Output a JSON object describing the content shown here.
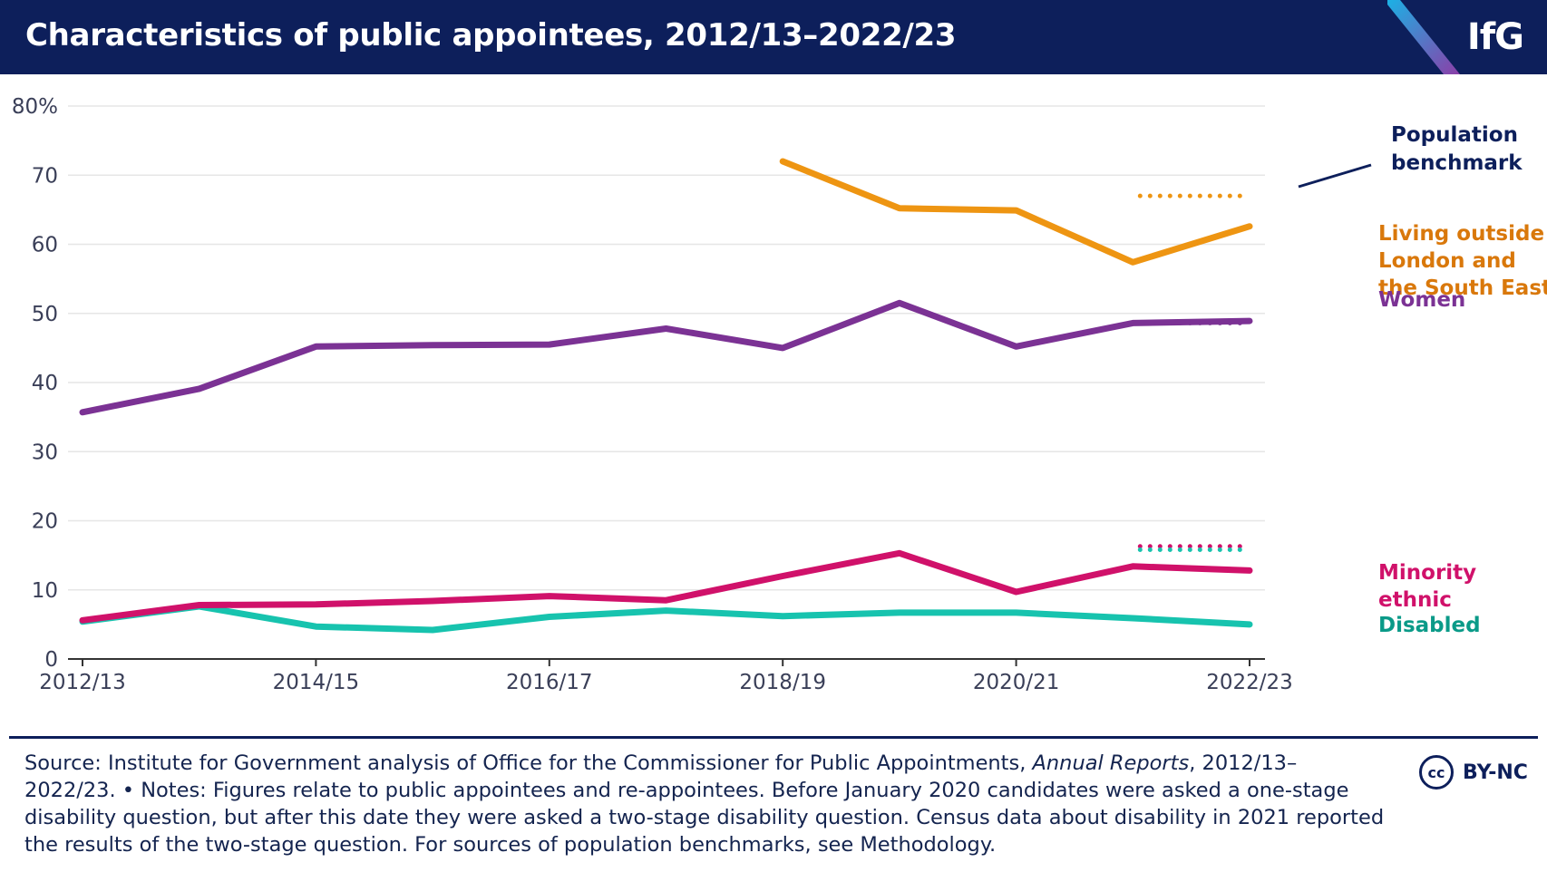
{
  "header": {
    "title": "Characteristics of public appointees, 2012/13–2022/23",
    "logo": "IfG"
  },
  "colors": {
    "navy": "#0d1f5b",
    "women": "#7b3294",
    "outside_london": "#ee9512",
    "outside_london_label": "#d9780b",
    "minority_ethnic": "#d0116a",
    "disabled": "#17c3ae",
    "disabled_label": "#0a9a88",
    "gridline": "#e6e6e6"
  },
  "chart_data": {
    "type": "line",
    "categories": [
      "2012/13",
      "2013/14",
      "2014/15",
      "2015/16",
      "2016/17",
      "2017/18",
      "2018/19",
      "2019/20",
      "2020/21",
      "2021/22",
      "2022/23"
    ],
    "x_tick_labels": [
      "2012/13",
      "",
      "2014/15",
      "",
      "2016/17",
      "",
      "2018/19",
      "",
      "2020/21",
      "",
      "2022/23"
    ],
    "y_ticks": [
      0,
      10,
      20,
      30,
      40,
      50,
      60,
      70,
      80
    ],
    "y_tick_labels": [
      "0",
      "10",
      "20",
      "30",
      "40",
      "50",
      "60",
      "70",
      "80%"
    ],
    "ylim": [
      0,
      80
    ],
    "title": "Characteristics of public appointees, 2012/13–2022/23",
    "series": [
      {
        "name": "Living outside London and the South East",
        "label_lines": [
          "Living outside",
          "London and",
          "the South East"
        ],
        "color": "#ee9512",
        "values": [
          null,
          null,
          null,
          null,
          null,
          null,
          72.0,
          65.2,
          64.9,
          57.4,
          62.6
        ]
      },
      {
        "name": "Women",
        "label_lines": [
          "Women"
        ],
        "color": "#7b3294",
        "values": [
          35.7,
          39.1,
          45.2,
          45.4,
          45.5,
          47.8,
          45.0,
          51.5,
          45.2,
          48.6,
          48.9
        ]
      },
      {
        "name": "Minority ethnic",
        "label_lines": [
          "Minority",
          "ethnic"
        ],
        "color": "#d0116a",
        "values": [
          5.6,
          7.8,
          7.9,
          8.4,
          9.1,
          8.5,
          12.0,
          15.3,
          9.7,
          13.4,
          12.8
        ]
      },
      {
        "name": "Disabled",
        "label_lines": [
          "Disabled"
        ],
        "color": "#17c3ae",
        "values": [
          5.4,
          7.6,
          4.7,
          4.2,
          6.1,
          7.0,
          6.2,
          6.7,
          6.7,
          5.9,
          5.0
        ]
      }
    ],
    "benchmarks": [
      {
        "series": "Living outside London and the South East",
        "value": 67.0,
        "from": "2021/22",
        "to": "2022/23",
        "color": "#ee9512"
      },
      {
        "series": "Women",
        "value": 48.6,
        "from": "2021/22",
        "to": "2022/23",
        "color": "#7b3294"
      },
      {
        "series": "Minority ethnic",
        "value": 16.3,
        "from": "2021/22",
        "to": "2022/23",
        "color": "#d0116a"
      },
      {
        "series": "Disabled",
        "value": 15.8,
        "from": "2021/22",
        "to": "2022/23",
        "color": "#17c3ae"
      }
    ],
    "benchmark_label_lines": [
      "Population",
      "benchmark"
    ]
  },
  "footer": {
    "source_prefix": "Source: Institute for Government analysis of Office for the Commissioner for Public Appointments, ",
    "source_italic": "Annual Reports",
    "source_suffix": ", 2012/13–2022/23. • Notes: Figures relate to public appointees and re-appointees. Before January 2020 candidates were asked a one-stage disability question, but after this date they were asked a two-stage disability question. Census data about disability in 2021 reported the results of the two-stage question. For sources of population benchmarks, see Methodology.",
    "cc_symbol": "cc",
    "license": "BY-NC"
  }
}
